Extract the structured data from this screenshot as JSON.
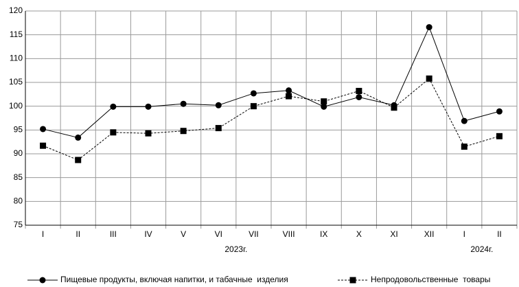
{
  "chart_data": {
    "type": "line",
    "categories": [
      "I",
      "II",
      "III",
      "IV",
      "V",
      "VI",
      "VII",
      "VIII",
      "IX",
      "X",
      "XI",
      "XII",
      "I",
      "II"
    ],
    "annotations": [
      "2023г.",
      "2024г."
    ],
    "series": [
      {
        "name": "Пищевые продукты, включая напитки, и табачные  изделия",
        "color": "#000000",
        "marker": "circle",
        "dash": false,
        "values": [
          95.2,
          93.4,
          99.9,
          99.9,
          100.5,
          100.2,
          102.7,
          103.3,
          99.9,
          101.9,
          100.2,
          116.6,
          96.9,
          98.9
        ]
      },
      {
        "name": "Непродовольственные  товары",
        "color": "#000000",
        "marker": "square",
        "dash": true,
        "values": [
          91.7,
          88.7,
          94.5,
          94.3,
          94.8,
          95.4,
          100.0,
          102.1,
          101.0,
          103.2,
          99.7,
          105.8,
          91.5,
          93.7
        ]
      }
    ],
    "ylim": [
      75,
      120
    ],
    "yticks": [
      75,
      80,
      85,
      90,
      95,
      100,
      105,
      110,
      115,
      120
    ],
    "grid": true
  }
}
